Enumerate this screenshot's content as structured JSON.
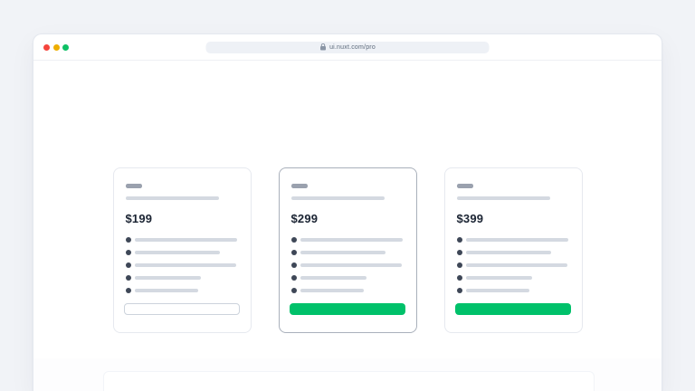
{
  "page": {
    "background_color": "#f1f3f7"
  },
  "browser": {
    "traffic_lights": [
      {
        "name": "close",
        "color": "#f5453d"
      },
      {
        "name": "minimize",
        "color": "#eeae01"
      },
      {
        "name": "maximize",
        "color": "#0ec065"
      }
    ],
    "address_bar": {
      "url": "ui.nuxt.com/pro",
      "icon": "lock-icon",
      "pill_color": "#eef1f6",
      "text_color": "#5e6b7c"
    }
  },
  "pricing": {
    "accent_color": "#00c16a",
    "placeholder_color": "#d4d9e1",
    "bullet_color": "#3e4757",
    "cards": [
      {
        "price": "$199",
        "highlighted": false,
        "button_variant": "outline",
        "title_bar_width": 18,
        "description_bar_width": 103,
        "feature_bar_widths": [
          113,
          94,
          112,
          73,
          70
        ]
      },
      {
        "price": "$299",
        "highlighted": true,
        "button_variant": "solid",
        "title_bar_width": 18,
        "description_bar_width": 103,
        "feature_bar_widths": [
          113,
          94,
          112,
          73,
          70
        ]
      },
      {
        "price": "$399",
        "highlighted": false,
        "button_variant": "solid",
        "title_bar_width": 18,
        "description_bar_width": 103,
        "feature_bar_widths": [
          113,
          94,
          112,
          73,
          70
        ]
      }
    ]
  }
}
